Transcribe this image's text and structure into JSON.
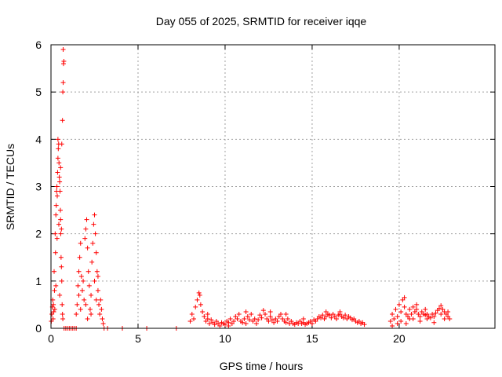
{
  "chart_data": {
    "type": "scatter",
    "title": "Day 055 of 2025, SRMTID for receiver iqqe",
    "xlabel": "GPS time / hours",
    "ylabel": "SRMTID / TECUs",
    "xlim": [
      0,
      25.5
    ],
    "ylim": [
      0,
      6
    ],
    "x_ticks": [
      0,
      5,
      10,
      15,
      20
    ],
    "y_ticks": [
      0,
      1,
      2,
      3,
      4,
      5,
      6
    ],
    "grid": true,
    "marker": "+",
    "series_color": "#ff0000",
    "grid_color": "#a0a0a0",
    "series": [
      {
        "name": "SRMTID",
        "points": [
          [
            0.02,
            0.15
          ],
          [
            0.05,
            0.3
          ],
          [
            0.08,
            0.45
          ],
          [
            0.1,
            0.6
          ],
          [
            0.12,
            0.2
          ],
          [
            0.14,
            0.5
          ],
          [
            0.16,
            0.35
          ],
          [
            0.18,
            1.2
          ],
          [
            0.2,
            0.8
          ],
          [
            0.22,
            0.4
          ],
          [
            0.24,
            2.0
          ],
          [
            0.26,
            1.6
          ],
          [
            0.28,
            2.4
          ],
          [
            0.3,
            2.6
          ],
          [
            0.32,
            2.9
          ],
          [
            0.34,
            3.0
          ],
          [
            0.36,
            2.8
          ],
          [
            0.38,
            3.3
          ],
          [
            0.4,
            3.6
          ],
          [
            0.42,
            3.8
          ],
          [
            0.44,
            3.9
          ],
          [
            0.46,
            3.5
          ],
          [
            0.48,
            3.2
          ],
          [
            0.5,
            3.1
          ],
          [
            0.52,
            2.9
          ],
          [
            0.54,
            2.5
          ],
          [
            0.56,
            2.0
          ],
          [
            0.58,
            1.5
          ],
          [
            0.6,
            1.3
          ],
          [
            0.62,
            1.0
          ],
          [
            0.64,
            0.5
          ],
          [
            0.66,
            0.3
          ],
          [
            0.68,
            0.2
          ],
          [
            0.66,
            4.4
          ],
          [
            0.68,
            5.0
          ],
          [
            0.7,
            5.2
          ],
          [
            0.72,
            5.6
          ],
          [
            0.74,
            5.65
          ],
          [
            0.7,
            5.9
          ],
          [
            0.45,
            2.2
          ],
          [
            0.35,
            1.9
          ],
          [
            0.55,
            2.3
          ],
          [
            0.6,
            2.1
          ],
          [
            0.5,
            0.7
          ],
          [
            0.28,
            0.9
          ],
          [
            0.4,
            4.0
          ],
          [
            0.55,
            3.4
          ],
          [
            0.62,
            3.9
          ],
          [
            0.75,
            0.0
          ],
          [
            0.85,
            0.0
          ],
          [
            0.95,
            0.0
          ],
          [
            1.05,
            0.0
          ],
          [
            1.15,
            0.0
          ],
          [
            1.25,
            0.0
          ],
          [
            1.35,
            0.0
          ],
          [
            1.45,
            0.0
          ],
          [
            1.45,
            0.3
          ],
          [
            1.5,
            0.5
          ],
          [
            1.55,
            0.9
          ],
          [
            1.6,
            1.2
          ],
          [
            1.65,
            1.5
          ],
          [
            1.7,
            1.8
          ],
          [
            1.75,
            1.1
          ],
          [
            1.8,
            0.8
          ],
          [
            1.85,
            1.0
          ],
          [
            1.9,
            0.6
          ],
          [
            1.95,
            1.9
          ],
          [
            2.0,
            2.1
          ],
          [
            2.05,
            2.3
          ],
          [
            2.1,
            1.7
          ],
          [
            2.15,
            1.2
          ],
          [
            2.2,
            0.9
          ],
          [
            2.25,
            0.4
          ],
          [
            2.3,
            0.7
          ],
          [
            2.35,
            1.4
          ],
          [
            2.4,
            1.8
          ],
          [
            2.45,
            2.2
          ],
          [
            2.5,
            2.4
          ],
          [
            2.55,
            2.0
          ],
          [
            2.6,
            1.6
          ],
          [
            2.65,
            1.2
          ],
          [
            2.7,
            0.8
          ],
          [
            2.75,
            0.5
          ],
          [
            2.8,
            0.3
          ],
          [
            2.85,
            0.6
          ],
          [
            2.9,
            0.4
          ],
          [
            2.95,
            0.2
          ],
          [
            3.0,
            0.1
          ],
          [
            1.7,
            0.4
          ],
          [
            2.0,
            0.5
          ],
          [
            2.3,
            0.3
          ],
          [
            2.6,
            0.6
          ],
          [
            1.6,
            0.7
          ],
          [
            2.5,
            1.0
          ],
          [
            2.1,
            0.2
          ],
          [
            2.7,
            1.1
          ],
          [
            3.05,
            0.0
          ],
          [
            3.25,
            0.0
          ],
          [
            4.1,
            0.0
          ],
          [
            5.5,
            0.0
          ],
          [
            7.2,
            0.0
          ],
          [
            8.0,
            0.15
          ],
          [
            8.1,
            0.3
          ],
          [
            8.2,
            0.2
          ],
          [
            8.3,
            0.45
          ],
          [
            8.4,
            0.6
          ],
          [
            8.5,
            0.75
          ],
          [
            8.55,
            0.7
          ],
          [
            8.6,
            0.5
          ],
          [
            8.7,
            0.35
          ],
          [
            8.8,
            0.25
          ],
          [
            8.9,
            0.15
          ],
          [
            9.0,
            0.2
          ],
          [
            9.1,
            0.1
          ],
          [
            9.2,
            0.18
          ],
          [
            9.3,
            0.12
          ],
          [
            9.4,
            0.08
          ],
          [
            9.5,
            0.15
          ],
          [
            9.6,
            0.1
          ],
          [
            9.7,
            0.05
          ],
          [
            9.8,
            0.12
          ],
          [
            9.9,
            0.1
          ],
          [
            10.0,
            0.08
          ],
          [
            10.1,
            0.15
          ],
          [
            10.2,
            0.12
          ],
          [
            10.3,
            0.2
          ],
          [
            10.4,
            0.1
          ],
          [
            10.5,
            0.15
          ],
          [
            10.6,
            0.25
          ],
          [
            10.7,
            0.2
          ],
          [
            10.8,
            0.3
          ],
          [
            10.9,
            0.15
          ],
          [
            11.0,
            0.12
          ],
          [
            11.1,
            0.2
          ],
          [
            11.2,
            0.1
          ],
          [
            11.3,
            0.25
          ],
          [
            11.4,
            0.18
          ],
          [
            11.5,
            0.3
          ],
          [
            11.6,
            0.15
          ],
          [
            11.7,
            0.2
          ],
          [
            11.8,
            0.1
          ],
          [
            11.9,
            0.18
          ],
          [
            12.0,
            0.28
          ],
          [
            12.1,
            0.22
          ],
          [
            12.2,
            0.38
          ],
          [
            12.3,
            0.3
          ],
          [
            12.4,
            0.2
          ],
          [
            12.5,
            0.15
          ],
          [
            12.6,
            0.25
          ],
          [
            12.7,
            0.18
          ],
          [
            12.8,
            0.12
          ],
          [
            12.9,
            0.2
          ],
          [
            13.0,
            0.15
          ],
          [
            13.1,
            0.25
          ],
          [
            13.2,
            0.3
          ],
          [
            13.3,
            0.2
          ],
          [
            13.4,
            0.15
          ],
          [
            13.5,
            0.12
          ],
          [
            13.6,
            0.2
          ],
          [
            13.7,
            0.1
          ],
          [
            13.8,
            0.15
          ],
          [
            13.9,
            0.1
          ],
          [
            14.0,
            0.08
          ],
          [
            14.1,
            0.12
          ],
          [
            14.2,
            0.1
          ],
          [
            14.3,
            0.15
          ],
          [
            14.4,
            0.1
          ],
          [
            14.5,
            0.12
          ],
          [
            14.6,
            0.08
          ],
          [
            14.7,
            0.1
          ],
          [
            14.8,
            0.12
          ],
          [
            14.9,
            0.15
          ],
          [
            15.0,
            0.1
          ],
          [
            15.1,
            0.18
          ],
          [
            15.2,
            0.15
          ],
          [
            15.3,
            0.2
          ],
          [
            15.4,
            0.25
          ],
          [
            15.5,
            0.22
          ],
          [
            15.6,
            0.28
          ],
          [
            15.7,
            0.2
          ],
          [
            15.8,
            0.25
          ],
          [
            15.9,
            0.3
          ],
          [
            16.0,
            0.28
          ],
          [
            16.1,
            0.22
          ],
          [
            16.2,
            0.3
          ],
          [
            16.3,
            0.25
          ],
          [
            16.4,
            0.2
          ],
          [
            16.5,
            0.28
          ],
          [
            16.6,
            0.3
          ],
          [
            16.7,
            0.25
          ],
          [
            16.8,
            0.22
          ],
          [
            16.9,
            0.28
          ],
          [
            17.0,
            0.2
          ],
          [
            17.1,
            0.25
          ],
          [
            17.2,
            0.22
          ],
          [
            17.3,
            0.18
          ],
          [
            17.4,
            0.2
          ],
          [
            17.5,
            0.15
          ],
          [
            17.6,
            0.12
          ],
          [
            17.7,
            0.15
          ],
          [
            17.8,
            0.1
          ],
          [
            17.9,
            0.12
          ],
          [
            18.0,
            0.08
          ],
          [
            9.0,
            0.3
          ],
          [
            10.2,
            0.05
          ],
          [
            11.2,
            0.35
          ],
          [
            12.6,
            0.35
          ],
          [
            13.5,
            0.3
          ],
          [
            14.5,
            0.2
          ],
          [
            15.8,
            0.35
          ],
          [
            16.6,
            0.35
          ],
          [
            19.5,
            0.15
          ],
          [
            19.6,
            0.3
          ],
          [
            19.7,
            0.2
          ],
          [
            19.8,
            0.4
          ],
          [
            19.9,
            0.25
          ],
          [
            20.0,
            0.5
          ],
          [
            20.1,
            0.35
          ],
          [
            20.2,
            0.6
          ],
          [
            20.3,
            0.45
          ],
          [
            20.4,
            0.3
          ],
          [
            20.5,
            0.25
          ],
          [
            20.6,
            0.4
          ],
          [
            20.7,
            0.3
          ],
          [
            20.8,
            0.45
          ],
          [
            20.9,
            0.35
          ],
          [
            21.0,
            0.4
          ],
          [
            21.1,
            0.3
          ],
          [
            21.2,
            0.25
          ],
          [
            21.3,
            0.35
          ],
          [
            21.4,
            0.3
          ],
          [
            21.5,
            0.28
          ],
          [
            21.6,
            0.2
          ],
          [
            21.7,
            0.25
          ],
          [
            21.8,
            0.22
          ],
          [
            21.9,
            0.3
          ],
          [
            22.0,
            0.25
          ],
          [
            22.1,
            0.32
          ],
          [
            22.2,
            0.38
          ],
          [
            22.3,
            0.42
          ],
          [
            22.4,
            0.48
          ],
          [
            22.5,
            0.4
          ],
          [
            22.6,
            0.35
          ],
          [
            22.7,
            0.3
          ],
          [
            22.8,
            0.25
          ],
          [
            22.9,
            0.2
          ],
          [
            20.3,
            0.65
          ],
          [
            20.6,
            0.2
          ],
          [
            21.0,
            0.5
          ],
          [
            21.5,
            0.4
          ],
          [
            22.4,
            0.3
          ],
          [
            19.6,
            0.05
          ],
          [
            19.9,
            0.1
          ],
          [
            20.1,
            0.15
          ],
          [
            20.4,
            0.1
          ],
          [
            20.8,
            0.2
          ],
          [
            21.2,
            0.15
          ],
          [
            21.6,
            0.3
          ],
          [
            22.0,
            0.12
          ],
          [
            22.6,
            0.2
          ],
          [
            22.8,
            0.35
          ]
        ]
      }
    ]
  }
}
